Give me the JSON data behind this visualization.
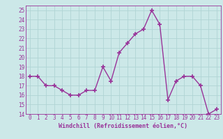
{
  "x": [
    0,
    1,
    2,
    3,
    4,
    5,
    6,
    7,
    8,
    9,
    10,
    11,
    12,
    13,
    14,
    15,
    16,
    17,
    18,
    19,
    20,
    21,
    22,
    23
  ],
  "y": [
    18.0,
    18.0,
    17.0,
    17.0,
    16.5,
    16.0,
    16.0,
    16.5,
    16.5,
    19.0,
    17.5,
    20.5,
    21.5,
    22.5,
    23.0,
    25.0,
    23.5,
    15.5,
    17.5,
    18.0,
    18.0,
    17.0,
    14.0,
    14.5
  ],
  "line_color": "#993399",
  "marker": "+",
  "markersize": 4,
  "markeredgewidth": 1.2,
  "linewidth": 1.0,
  "xlabel": "Windchill (Refroidissement éolien,°C)",
  "ylim": [
    14,
    25.5
  ],
  "xlim": [
    -0.5,
    23.5
  ],
  "yticks": [
    14,
    15,
    16,
    17,
    18,
    19,
    20,
    21,
    22,
    23,
    24,
    25
  ],
  "xticks": [
    0,
    1,
    2,
    3,
    4,
    5,
    6,
    7,
    8,
    9,
    10,
    11,
    12,
    13,
    14,
    15,
    16,
    17,
    18,
    19,
    20,
    21,
    22,
    23
  ],
  "bg_color": "#cce8e8",
  "grid_color": "#b0d4d4",
  "tick_color": "#993399",
  "label_color": "#993399",
  "xlabel_fontsize": 6.0,
  "tick_fontsize": 5.5
}
